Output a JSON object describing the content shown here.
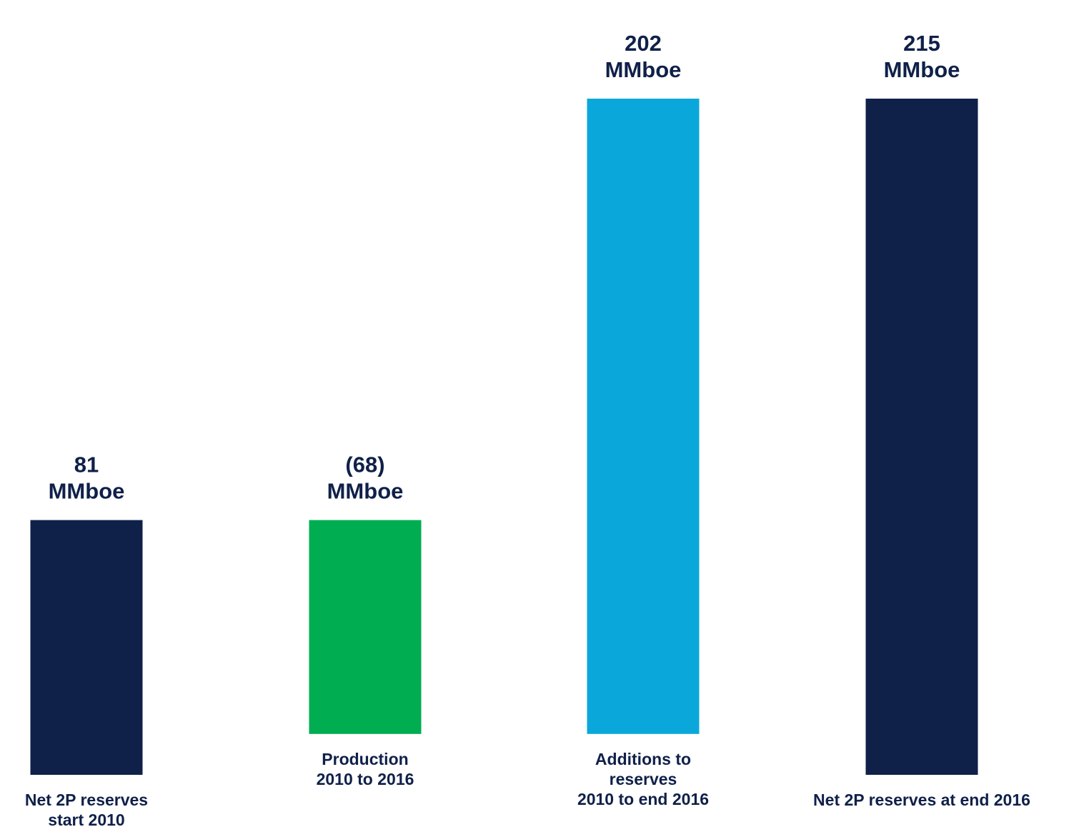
{
  "chart_data": {
    "type": "bar",
    "chart_style": "waterfall",
    "title": "",
    "xlabel": "",
    "ylabel": "",
    "unit": "MMboe",
    "categories": [
      "Net 2P reserves start 2010",
      "Production 2010 to 2016",
      "Additions to reserves 2010 to end 2016",
      "Net 2P reserves at end 2016"
    ],
    "category_lines": [
      [
        "Net 2P reserves",
        "start 2010"
      ],
      [
        "Production",
        "2010 to 2016"
      ],
      [
        "Additions to",
        "reserves",
        "2010 to end 2016"
      ],
      [
        "Net 2P reserves at end 2016"
      ]
    ],
    "values": [
      81,
      -68,
      202,
      215
    ],
    "value_labels": [
      [
        "81",
        "MMboe"
      ],
      [
        "(68)",
        "MMboe"
      ],
      [
        "202",
        "MMboe"
      ],
      [
        "215",
        "MMboe"
      ]
    ],
    "bar_kinds": [
      "total",
      "delta",
      "delta",
      "total"
    ],
    "colors": [
      "#0f2049",
      "#00ad50",
      "#0aa8da",
      "#0f2049"
    ],
    "text_color": "#0f2049",
    "grid": false,
    "legend": "none"
  }
}
